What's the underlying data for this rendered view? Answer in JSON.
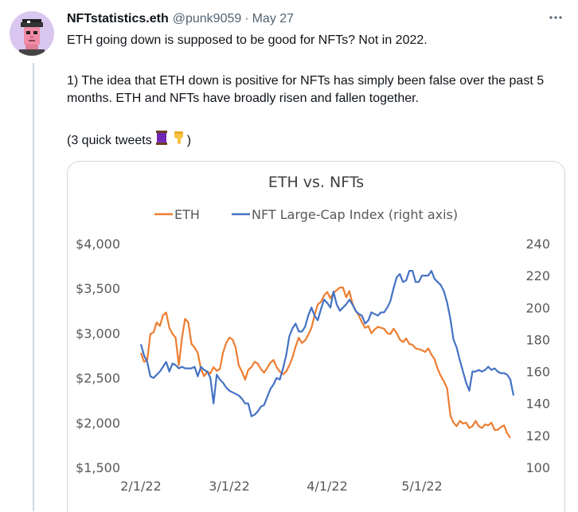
{
  "tweet": {
    "author_name": "NFTstatistics.eth",
    "handle": "@punk9059",
    "separator": "·",
    "date": "May 27",
    "line1": "ETH going down is supposed to be good for NFTs? Not in 2022.",
    "paragraph2": "1) The idea that ETH down is positive for NFTs has simply been false over the past 5 months. ETH and NFTs have broadly risen and fallen together.",
    "paragraph3_text": "(3 quick tweets",
    "paragraph3_close": ")",
    "emoji_icons": [
      "thread-icon",
      "pointing-down-icon"
    ]
  },
  "colors": {
    "eth": "#ED7D31",
    "nft": "#4472C4",
    "muted": "#536471",
    "border": "#cfd9de"
  },
  "chart_data": {
    "type": "line",
    "title": "ETH vs. NFTs",
    "legend_position": "top",
    "x_tick_labels": [
      "2/1/22",
      "3/1/22",
      "4/1/22",
      "5/1/22"
    ],
    "x_ticks_days": [
      0,
      28,
      59,
      89
    ],
    "x_range_days": [
      0,
      118
    ],
    "y_left": {
      "min": 1500,
      "max": 4000,
      "step": 500,
      "tick_labels": [
        "$1,500",
        "$2,000",
        "$2,500",
        "$3,000",
        "$3,500",
        "$4,000"
      ]
    },
    "y_right": {
      "min": 100,
      "max": 240,
      "step": 20,
      "tick_labels": [
        "100",
        "120",
        "140",
        "160",
        "180",
        "200",
        "220",
        "240"
      ]
    },
    "gridlines": false,
    "series": [
      {
        "name": "ETH",
        "axis": "left",
        "points": [
          [
            0,
            2780
          ],
          [
            1,
            2680
          ],
          [
            2,
            2700
          ],
          [
            3,
            2990
          ],
          [
            4,
            3010
          ],
          [
            5,
            3120
          ],
          [
            6,
            3080
          ],
          [
            7,
            3200
          ],
          [
            8,
            3230
          ],
          [
            9,
            3060
          ],
          [
            10,
            2990
          ],
          [
            11,
            2950
          ],
          [
            12,
            2640
          ],
          [
            13,
            2950
          ],
          [
            14,
            3160
          ],
          [
            15,
            3120
          ],
          [
            16,
            2880
          ],
          [
            17,
            2840
          ],
          [
            18,
            2780
          ],
          [
            19,
            2600
          ],
          [
            20,
            2520
          ],
          [
            21,
            2570
          ],
          [
            22,
            2550
          ],
          [
            23,
            2620
          ],
          [
            24,
            2580
          ],
          [
            25,
            2600
          ],
          [
            26,
            2780
          ],
          [
            27,
            2890
          ],
          [
            28,
            2950
          ],
          [
            29,
            2930
          ],
          [
            30,
            2840
          ],
          [
            31,
            2640
          ],
          [
            32,
            2570
          ],
          [
            33,
            2480
          ],
          [
            34,
            2590
          ],
          [
            35,
            2620
          ],
          [
            36,
            2680
          ],
          [
            37,
            2660
          ],
          [
            38,
            2600
          ],
          [
            39,
            2560
          ],
          [
            40,
            2610
          ],
          [
            41,
            2670
          ],
          [
            42,
            2700
          ],
          [
            43,
            2620
          ],
          [
            44,
            2570
          ],
          [
            45,
            2540
          ],
          [
            46,
            2570
          ],
          [
            47,
            2640
          ],
          [
            48,
            2730
          ],
          [
            49,
            2850
          ],
          [
            50,
            2950
          ],
          [
            51,
            2890
          ],
          [
            52,
            2920
          ],
          [
            53,
            2980
          ],
          [
            54,
            3060
          ],
          [
            55,
            3200
          ],
          [
            56,
            3320
          ],
          [
            57,
            3350
          ],
          [
            58,
            3420
          ],
          [
            59,
            3460
          ],
          [
            60,
            3390
          ],
          [
            61,
            3450
          ],
          [
            62,
            3480
          ],
          [
            63,
            3510
          ],
          [
            64,
            3510
          ],
          [
            65,
            3400
          ],
          [
            66,
            3470
          ],
          [
            67,
            3330
          ],
          [
            68,
            3250
          ],
          [
            69,
            3200
          ],
          [
            70,
            3120
          ],
          [
            71,
            3060
          ],
          [
            72,
            3080
          ],
          [
            73,
            3000
          ],
          [
            74,
            3040
          ],
          [
            75,
            3070
          ],
          [
            76,
            3060
          ],
          [
            77,
            3050
          ],
          [
            78,
            3000
          ],
          [
            79,
            2990
          ],
          [
            80,
            3050
          ],
          [
            81,
            3000
          ],
          [
            82,
            2930
          ],
          [
            83,
            2900
          ],
          [
            84,
            2940
          ],
          [
            85,
            2880
          ],
          [
            86,
            2870
          ],
          [
            87,
            2830
          ],
          [
            88,
            2820
          ],
          [
            89,
            2810
          ],
          [
            90,
            2790
          ],
          [
            91,
            2830
          ],
          [
            92,
            2760
          ],
          [
            93,
            2710
          ],
          [
            94,
            2600
          ],
          [
            95,
            2520
          ],
          [
            96,
            2460
          ],
          [
            97,
            2380
          ],
          [
            98,
            2080
          ],
          [
            99,
            2000
          ],
          [
            100,
            1960
          ],
          [
            101,
            2020
          ],
          [
            102,
            1990
          ],
          [
            103,
            2000
          ],
          [
            104,
            1940
          ],
          [
            105,
            1960
          ],
          [
            106,
            2020
          ],
          [
            107,
            1960
          ],
          [
            108,
            1940
          ],
          [
            109,
            1980
          ],
          [
            110,
            1970
          ],
          [
            111,
            2000
          ],
          [
            112,
            1920
          ],
          [
            113,
            1920
          ],
          [
            114,
            1950
          ],
          [
            115,
            1970
          ],
          [
            116,
            1880
          ],
          [
            117,
            1830
          ]
        ]
      },
      {
        "name": "NFT Large-Cap Index (right axis)",
        "axis": "right",
        "points": [
          [
            0,
            177
          ],
          [
            1,
            170
          ],
          [
            2,
            166
          ],
          [
            3,
            157
          ],
          [
            4,
            156
          ],
          [
            5,
            158
          ],
          [
            6,
            160
          ],
          [
            7,
            163
          ],
          [
            8,
            166
          ],
          [
            9,
            160
          ],
          [
            10,
            165
          ],
          [
            11,
            164
          ],
          [
            12,
            162
          ],
          [
            13,
            163
          ],
          [
            14,
            162
          ],
          [
            15,
            162
          ],
          [
            16,
            162
          ],
          [
            17,
            163
          ],
          [
            18,
            157
          ],
          [
            19,
            163
          ],
          [
            20,
            161
          ],
          [
            21,
            160
          ],
          [
            22,
            156
          ],
          [
            23,
            140
          ],
          [
            24,
            158
          ],
          [
            25,
            155
          ],
          [
            26,
            153
          ],
          [
            27,
            150
          ],
          [
            28,
            148
          ],
          [
            29,
            147
          ],
          [
            30,
            146
          ],
          [
            31,
            145
          ],
          [
            32,
            143
          ],
          [
            33,
            140
          ],
          [
            34,
            140
          ],
          [
            35,
            132
          ],
          [
            36,
            133
          ],
          [
            37,
            135
          ],
          [
            38,
            138
          ],
          [
            39,
            139
          ],
          [
            40,
            144
          ],
          [
            41,
            149
          ],
          [
            42,
            152
          ],
          [
            43,
            156
          ],
          [
            44,
            155
          ],
          [
            45,
            162
          ],
          [
            46,
            170
          ],
          [
            47,
            182
          ],
          [
            48,
            187
          ],
          [
            49,
            190
          ],
          [
            50,
            185
          ],
          [
            51,
            185
          ],
          [
            52,
            188
          ],
          [
            53,
            195
          ],
          [
            54,
            200
          ],
          [
            55,
            195
          ],
          [
            56,
            192
          ],
          [
            57,
            199
          ],
          [
            58,
            205
          ],
          [
            59,
            203
          ],
          [
            60,
            200
          ],
          [
            61,
            210
          ],
          [
            62,
            202
          ],
          [
            63,
            198
          ],
          [
            64,
            200
          ],
          [
            65,
            202
          ],
          [
            66,
            205
          ],
          [
            67,
            202
          ],
          [
            68,
            198
          ],
          [
            69,
            196
          ],
          [
            70,
            195
          ],
          [
            71,
            190
          ],
          [
            72,
            192
          ],
          [
            73,
            197
          ],
          [
            74,
            196
          ],
          [
            75,
            195
          ],
          [
            76,
            197
          ],
          [
            77,
            197
          ],
          [
            78,
            200
          ],
          [
            79,
            204
          ],
          [
            80,
            212
          ],
          [
            81,
            219
          ],
          [
            82,
            221
          ],
          [
            83,
            216
          ],
          [
            84,
            217
          ],
          [
            85,
            223
          ],
          [
            86,
            223
          ],
          [
            87,
            216
          ],
          [
            88,
            216
          ],
          [
            89,
            220
          ],
          [
            90,
            220
          ],
          [
            91,
            220
          ],
          [
            92,
            223
          ],
          [
            93,
            218
          ],
          [
            94,
            216
          ],
          [
            95,
            214
          ],
          [
            96,
            210
          ],
          [
            97,
            203
          ],
          [
            98,
            193
          ],
          [
            99,
            180
          ],
          [
            100,
            175
          ],
          [
            101,
            167
          ],
          [
            102,
            160
          ],
          [
            103,
            153
          ],
          [
            104,
            148
          ],
          [
            105,
            160
          ],
          [
            106,
            160
          ],
          [
            107,
            161
          ],
          [
            108,
            160
          ],
          [
            109,
            161
          ],
          [
            110,
            163
          ],
          [
            111,
            161
          ],
          [
            112,
            162
          ],
          [
            113,
            160
          ],
          [
            114,
            159
          ],
          [
            115,
            159
          ],
          [
            116,
            158
          ],
          [
            117,
            155
          ],
          [
            118,
            145
          ]
        ]
      }
    ]
  }
}
